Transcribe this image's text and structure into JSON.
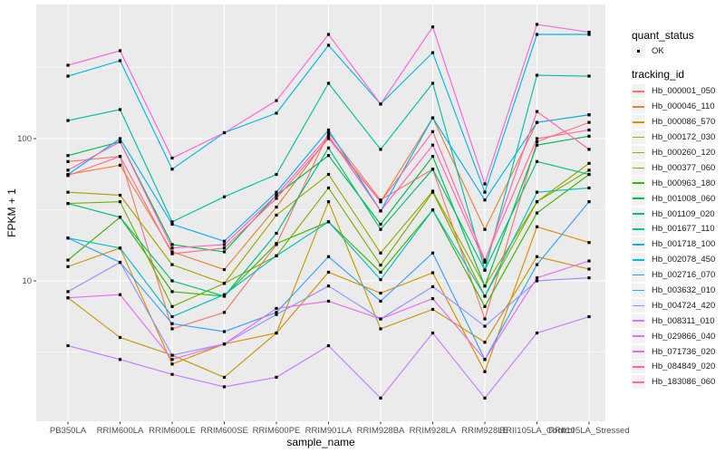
{
  "figure": {
    "panel_background": "#EBEBEB",
    "gridline_color": "#FFFFFF",
    "axis_text_color": "#4D4D4D",
    "tick_color": "#333333",
    "point_color": "#000000",
    "legend_key_background": "#F2F2F2"
  },
  "legend": {
    "quant_status": {
      "title": "quant_status",
      "items": [
        {
          "label": "OK"
        }
      ]
    },
    "tracking_id": {
      "title": "tracking_id"
    }
  },
  "chart_data": {
    "type": "line",
    "title": "",
    "xlabel": "sample_name",
    "ylabel": "FPKM + 1",
    "y_scale": "log10",
    "ylim": [
      1,
      900
    ],
    "grid": true,
    "legend_position": "right",
    "marker": "black-square (quant_status = OK)",
    "y_ticks": [
      {
        "label": "100",
        "value": 100
      },
      {
        "label": "10",
        "value": 10
      }
    ],
    "y_minor_gridline_values": [
      316.23,
      31.62,
      3.162
    ],
    "categories": [
      "PB350LA",
      "RRIM600LA",
      "RRIM600LE",
      "RRIM600SE",
      "RRIM600PE",
      "RRIM901LA",
      "RRIM928BA",
      "RRIM928LA",
      "RRIM928LE",
      "RRII105LA_Control",
      "RRII105LA_Stressed"
    ],
    "series": [
      {
        "name": "Hb_000001_050",
        "color": "#F8766D",
        "quant_status": "OK",
        "values": [
          69,
          75,
          4.6,
          6,
          18,
          110,
          37,
          61,
          5.4,
          95,
          130
        ]
      },
      {
        "name": "Hb_000046_110",
        "color": "#EA8331",
        "quant_status": "OK",
        "values": [
          56,
          65,
          16,
          12,
          33,
          103,
          36,
          140,
          23,
          130,
          147
        ]
      },
      {
        "name": "Hb_000086_570",
        "color": "#D89000",
        "quant_status": "OK",
        "values": [
          12.6,
          17,
          2.6,
          3.6,
          4.3,
          11.5,
          8.2,
          11.4,
          2.3,
          24,
          18.6
        ]
      },
      {
        "name": "Hb_000172_030",
        "color": "#C09B00",
        "quant_status": "OK",
        "values": [
          7.6,
          4,
          3,
          2.1,
          4.3,
          36,
          4.6,
          6.3,
          3.7,
          14.8,
          12.1
        ]
      },
      {
        "name": "Hb_000260_120",
        "color": "#A3A500",
        "quant_status": "OK",
        "values": [
          42,
          40,
          13,
          9.6,
          29,
          56,
          15.7,
          42.7,
          9.2,
          36,
          67
        ]
      },
      {
        "name": "Hb_000377_060",
        "color": "#7CAE00",
        "quant_status": "OK",
        "values": [
          35,
          36,
          6.6,
          9.6,
          15,
          45,
          12.9,
          42,
          7.8,
          36,
          60
        ]
      },
      {
        "name": "Hb_000963_180",
        "color": "#39B600",
        "quant_status": "OK",
        "values": [
          14,
          28,
          8.4,
          7.8,
          18.3,
          26,
          11.5,
          31.5,
          6.6,
          30,
          56
        ]
      },
      {
        "name": "Hb_001008_060",
        "color": "#00BB4E",
        "quant_status": "OK",
        "values": [
          76,
          95,
          18,
          16,
          40,
          76,
          25,
          75,
          9.2,
          90,
          104
        ]
      },
      {
        "name": "Hb_001109_020",
        "color": "#00BF7D",
        "quant_status": "OK",
        "values": [
          35,
          28,
          10,
          7.8,
          21.6,
          86,
          23,
          61,
          11.9,
          69,
          56
        ]
      },
      {
        "name": "Hb_001677_110",
        "color": "#00C1A3",
        "quant_status": "OK",
        "values": [
          134,
          160,
          26,
          39,
          56,
          245,
          84,
          245,
          11.9,
          279,
          275
        ]
      },
      {
        "name": "Hb_001718_100",
        "color": "#00BFC4",
        "quant_status": "OK",
        "values": [
          20,
          17,
          5.6,
          8,
          15,
          26,
          10.2,
          31.5,
          7.8,
          42,
          45
        ]
      },
      {
        "name": "Hb_002078_450",
        "color": "#00BAE0",
        "quant_status": "OK",
        "values": [
          275,
          353,
          61,
          110,
          151,
          453,
          175,
          402,
          42,
          540,
          540
        ]
      },
      {
        "name": "Hb_002716_070",
        "color": "#00B0F6",
        "quant_status": "OK",
        "values": [
          56,
          100,
          25,
          19,
          42,
          115,
          31,
          140,
          37,
          130,
          147
        ]
      },
      {
        "name": "Hb_003632_010",
        "color": "#35A2FF",
        "quant_status": "OK",
        "values": [
          20,
          13.5,
          5,
          4.4,
          6,
          14.8,
          7.2,
          15.7,
          2.8,
          13,
          36
        ]
      },
      {
        "name": "Hb_004724_420",
        "color": "#9590FF",
        "quant_status": "OK",
        "values": [
          8.4,
          13.5,
          3,
          3.6,
          5.8,
          9.2,
          5.4,
          9.1,
          4.8,
          10,
          10.5
        ]
      },
      {
        "name": "Hb_008311_010",
        "color": "#C77CFF",
        "quant_status": "OK",
        "values": [
          3.5,
          2.8,
          2.2,
          1.8,
          2.1,
          3.5,
          1.5,
          4.3,
          1.5,
          4.3,
          5.6
        ]
      },
      {
        "name": "Hb_029866_040",
        "color": "#E76BF3",
        "quant_status": "OK",
        "values": [
          7.6,
          8,
          2.8,
          3.6,
          6.4,
          7.2,
          5.4,
          7.5,
          2.8,
          10.5,
          13.8
        ]
      },
      {
        "name": "Hb_071736_020",
        "color": "#FA62DB",
        "quant_status": "OK",
        "values": [
          328,
          415,
          73,
          110,
          185,
          540,
          175,
          610,
          48,
          635,
          560
        ]
      },
      {
        "name": "Hb_084849_020",
        "color": "#FF62BC",
        "quant_status": "OK",
        "values": [
          60,
          95,
          17,
          18,
          40,
          105,
          31,
          90,
          13.5,
          155,
          84
        ]
      },
      {
        "name": "Hb_183086_060",
        "color": "#FF6A98",
        "quant_status": "OK",
        "values": [
          55,
          75,
          15.5,
          17,
          38,
          100,
          36,
          112,
          14,
          100,
          115
        ]
      }
    ]
  }
}
